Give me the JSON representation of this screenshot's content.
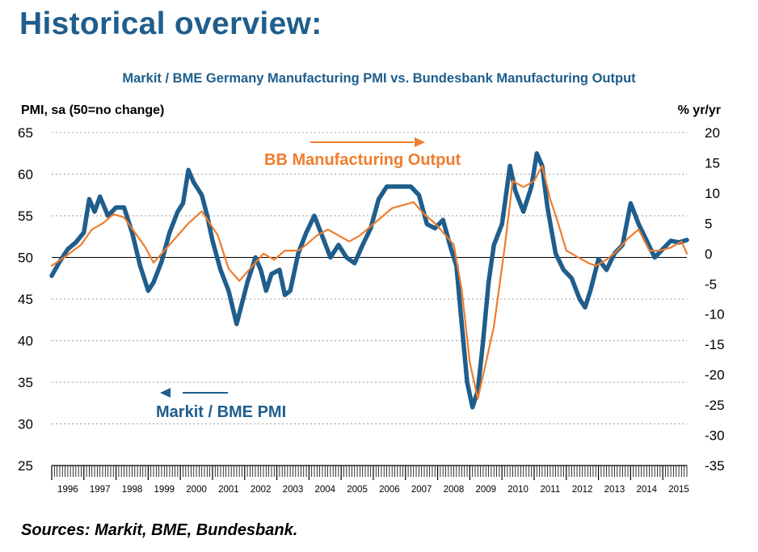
{
  "page": {
    "title": "Historical overview:",
    "sources": "Sources: Markit, BME, Bundesbank."
  },
  "chart_data": {
    "type": "line",
    "title": "Markit / BME Germany Manufacturing PMI vs. Bundesbank Manufacturing Output",
    "ylabel_left": "PMI, sa (50=no change)",
    "ylabel_right": "% yr/yr",
    "ylim_left": [
      25,
      65
    ],
    "ylim_right": [
      -35,
      20
    ],
    "yticks_left": [
      "65",
      "60",
      "55",
      "50",
      "45",
      "40",
      "35",
      "30",
      "25"
    ],
    "yticks_right": [
      "20",
      "15",
      "10",
      "5",
      "0",
      "-5",
      "-10",
      "-15",
      "-20",
      "-25",
      "-30",
      "-35"
    ],
    "x_range": [
      "1996-01",
      "2015-10"
    ],
    "x_tick_labels": [
      "1996",
      "1997",
      "1998",
      "1999",
      "2000",
      "2001",
      "2002",
      "2003",
      "2004",
      "2005",
      "2006",
      "2007",
      "2008",
      "2009",
      "2010",
      "2011",
      "2012",
      "2013",
      "2014",
      "2015"
    ],
    "grid": "horizontal dashed",
    "reference_line_y": 50,
    "series": [
      {
        "name": "Markit / BME PMI",
        "axis": "left",
        "color": "#1f5e8c",
        "arrow": "left",
        "points": [
          [
            "1996-01",
            47.8
          ],
          [
            "1996-04",
            49.5
          ],
          [
            "1996-07",
            51.0
          ],
          [
            "1996-10",
            51.8
          ],
          [
            "1997-01",
            53.0
          ],
          [
            "1997-03",
            57.0
          ],
          [
            "1997-05",
            55.5
          ],
          [
            "1997-07",
            57.3
          ],
          [
            "1997-10",
            55.0
          ],
          [
            "1998-01",
            56.0
          ],
          [
            "1998-04",
            56.0
          ],
          [
            "1998-07",
            53.0
          ],
          [
            "1998-10",
            49.0
          ],
          [
            "1999-01",
            46.0
          ],
          [
            "1999-03",
            47.0
          ],
          [
            "1999-06",
            49.5
          ],
          [
            "1999-09",
            53.0
          ],
          [
            "1999-12",
            55.5
          ],
          [
            "2000-02",
            56.5
          ],
          [
            "2000-04",
            60.5
          ],
          [
            "2000-06",
            59.0
          ],
          [
            "2000-09",
            57.5
          ],
          [
            "2000-11",
            55.0
          ],
          [
            "2001-01",
            52.0
          ],
          [
            "2001-04",
            48.5
          ],
          [
            "2001-07",
            46.0
          ],
          [
            "2001-10",
            42.0
          ],
          [
            "2001-12",
            44.5
          ],
          [
            "2002-02",
            47.0
          ],
          [
            "2002-05",
            50.0
          ],
          [
            "2002-07",
            48.5
          ],
          [
            "2002-09",
            46.0
          ],
          [
            "2002-11",
            48.0
          ],
          [
            "2003-02",
            48.5
          ],
          [
            "2003-04",
            45.5
          ],
          [
            "2003-06",
            46.0
          ],
          [
            "2003-09",
            50.5
          ],
          [
            "2003-12",
            53.0
          ],
          [
            "2004-03",
            55.0
          ],
          [
            "2004-06",
            52.5
          ],
          [
            "2004-09",
            50.0
          ],
          [
            "2004-12",
            51.5
          ],
          [
            "2005-03",
            50.0
          ],
          [
            "2005-06",
            49.3
          ],
          [
            "2005-09",
            51.5
          ],
          [
            "2005-12",
            53.5
          ],
          [
            "2006-03",
            57.0
          ],
          [
            "2006-06",
            58.5
          ],
          [
            "2006-09",
            58.5
          ],
          [
            "2006-12",
            58.5
          ],
          [
            "2007-03",
            58.5
          ],
          [
            "2007-06",
            57.5
          ],
          [
            "2007-09",
            54.0
          ],
          [
            "2007-12",
            53.5
          ],
          [
            "2008-03",
            54.5
          ],
          [
            "2008-06",
            51.0
          ],
          [
            "2008-08",
            49.0
          ],
          [
            "2008-10",
            42.0
          ],
          [
            "2008-12",
            35.0
          ],
          [
            "2009-02",
            32.0
          ],
          [
            "2009-04",
            34.0
          ],
          [
            "2009-06",
            40.0
          ],
          [
            "2009-08",
            47.0
          ],
          [
            "2009-10",
            51.5
          ],
          [
            "2010-01",
            54.0
          ],
          [
            "2010-04",
            61.0
          ],
          [
            "2010-06",
            58.0
          ],
          [
            "2010-09",
            55.5
          ],
          [
            "2010-12",
            58.5
          ],
          [
            "2011-02",
            62.5
          ],
          [
            "2011-04",
            61.0
          ],
          [
            "2011-06",
            56.0
          ],
          [
            "2011-09",
            50.5
          ],
          [
            "2011-12",
            48.5
          ],
          [
            "2012-03",
            47.5
          ],
          [
            "2012-06",
            45.0
          ],
          [
            "2012-08",
            44.0
          ],
          [
            "2012-10",
            46.0
          ],
          [
            "2013-01",
            49.8
          ],
          [
            "2013-04",
            48.5
          ],
          [
            "2013-07",
            50.5
          ],
          [
            "2013-10",
            51.5
          ],
          [
            "2014-01",
            56.5
          ],
          [
            "2014-04",
            54.0
          ],
          [
            "2014-07",
            52.0
          ],
          [
            "2014-10",
            50.0
          ],
          [
            "2015-01",
            51.0
          ],
          [
            "2015-04",
            52.0
          ],
          [
            "2015-07",
            51.8
          ],
          [
            "2015-10",
            52.1
          ]
        ]
      },
      {
        "name": "BB Manufacturing Output",
        "axis": "right",
        "color": "#ef7d2d",
        "arrow": "right",
        "points": [
          [
            "1996-01",
            -2.0
          ],
          [
            "1996-06",
            -0.5
          ],
          [
            "1996-12",
            1.5
          ],
          [
            "1997-04",
            4.0
          ],
          [
            "1997-08",
            5.0
          ],
          [
            "1997-12",
            6.5
          ],
          [
            "1998-04",
            6.0
          ],
          [
            "1998-08",
            3.5
          ],
          [
            "1998-12",
            1.0
          ],
          [
            "1999-03",
            -1.5
          ],
          [
            "1999-07",
            0.5
          ],
          [
            "1999-11",
            2.5
          ],
          [
            "2000-04",
            5.0
          ],
          [
            "2000-09",
            7.0
          ],
          [
            "2000-12",
            5.0
          ],
          [
            "2001-03",
            3.0
          ],
          [
            "2001-07",
            -2.5
          ],
          [
            "2001-11",
            -4.5
          ],
          [
            "2002-03",
            -2.5
          ],
          [
            "2002-08",
            0.0
          ],
          [
            "2002-12",
            -1.0
          ],
          [
            "2003-04",
            0.5
          ],
          [
            "2003-09",
            0.5
          ],
          [
            "2003-12",
            1.5
          ],
          [
            "2004-04",
            3.0
          ],
          [
            "2004-08",
            4.0
          ],
          [
            "2004-12",
            3.0
          ],
          [
            "2005-04",
            2.0
          ],
          [
            "2005-08",
            3.0
          ],
          [
            "2005-12",
            4.5
          ],
          [
            "2006-04",
            6.0
          ],
          [
            "2006-08",
            7.5
          ],
          [
            "2006-12",
            8.0
          ],
          [
            "2007-04",
            8.5
          ],
          [
            "2007-08",
            6.5
          ],
          [
            "2007-12",
            5.0
          ],
          [
            "2008-04",
            3.0
          ],
          [
            "2008-07",
            1.5
          ],
          [
            "2008-10",
            -6.0
          ],
          [
            "2009-01",
            -18.0
          ],
          [
            "2009-04",
            -24.0
          ],
          [
            "2009-07",
            -18.0
          ],
          [
            "2009-10",
            -12.0
          ],
          [
            "2010-02",
            1.0
          ],
          [
            "2010-05",
            12.0
          ],
          [
            "2010-09",
            11.0
          ],
          [
            "2011-01",
            12.0
          ],
          [
            "2011-04",
            14.5
          ],
          [
            "2011-07",
            9.0
          ],
          [
            "2011-10",
            5.0
          ],
          [
            "2012-01",
            0.5
          ],
          [
            "2012-05",
            -0.5
          ],
          [
            "2012-09",
            -1.5
          ],
          [
            "2012-12",
            -2.0
          ],
          [
            "2013-04",
            -1.0
          ],
          [
            "2013-08",
            0.5
          ],
          [
            "2013-12",
            2.5
          ],
          [
            "2014-04",
            4.0
          ],
          [
            "2014-08",
            0.5
          ],
          [
            "2014-12",
            0.5
          ],
          [
            "2015-04",
            1.0
          ],
          [
            "2015-08",
            2.0
          ],
          [
            "2015-10",
            0.0
          ]
        ]
      }
    ]
  }
}
